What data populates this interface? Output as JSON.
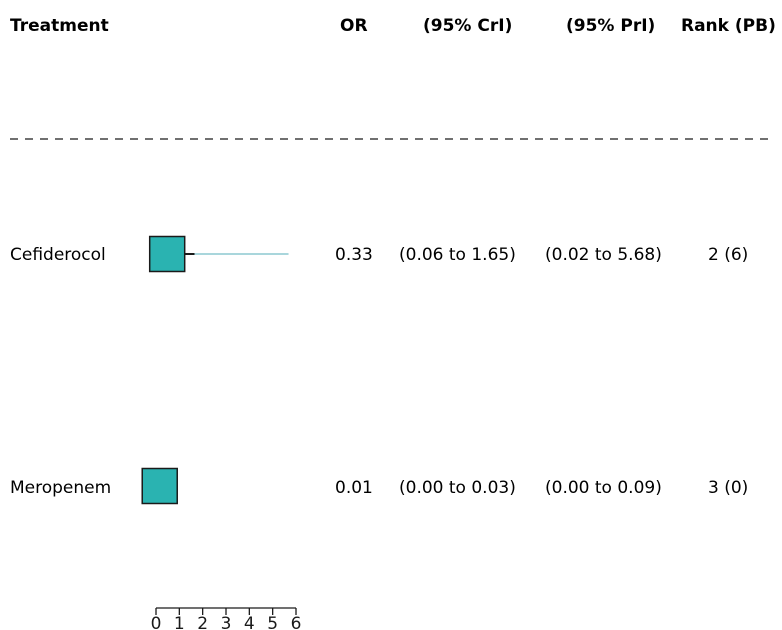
{
  "header": {
    "treatment": "Treatment",
    "or": "OR",
    "crl": "(95% CrI)",
    "prl": "(95% PrI)",
    "rank": "Rank (PB)"
  },
  "rows": [
    {
      "name": "Cefiderocol",
      "or": "0.33",
      "crl": "(0.06 to 1.65)",
      "prl": "(0.02 to 5.68)",
      "rank": "2 (6)"
    },
    {
      "name": "Meropenem",
      "or": "0.01",
      "crl": "(0.00 to 0.03)",
      "prl": "(0.00 to 0.09)",
      "rank": "3 (0)"
    }
  ],
  "colors": {
    "box_fill": "#2ab3b1",
    "box_stroke": "#1a1a1a",
    "ci_line": "#1a1a1a",
    "pi_line": "#a9d6dc",
    "divider": "#1a1a1a"
  },
  "chart_data": {
    "type": "forest",
    "categories": [
      "Cefiderocol",
      "Meropenem"
    ],
    "estimates": [
      0.33,
      0.01
    ],
    "ci_lower": [
      0.06,
      0.0
    ],
    "ci_upper": [
      1.65,
      0.03
    ],
    "pi_lower": [
      0.02,
      0.0
    ],
    "pi_upper": [
      5.68,
      0.09
    ],
    "xlim": [
      0,
      6
    ],
    "xticks": [
      "0",
      "1",
      "2",
      "3",
      "4",
      "5",
      "6"
    ]
  }
}
